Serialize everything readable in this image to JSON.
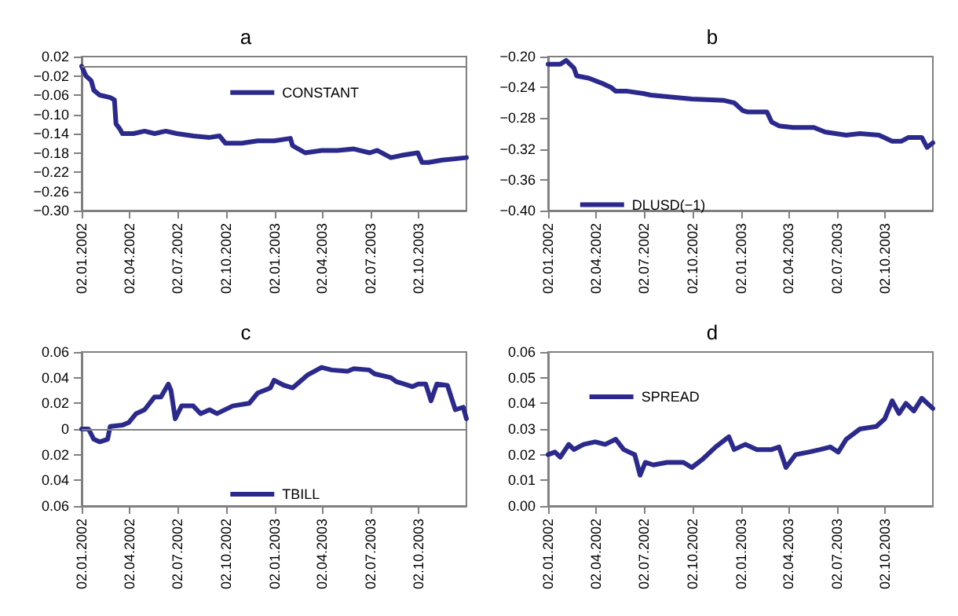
{
  "chart_data": [
    {
      "type": "line",
      "title": "a",
      "x": [
        "2002-01-02",
        "2002-01-10",
        "2002-01-20",
        "2002-01-25",
        "2002-02-05",
        "2002-02-25",
        "2002-03-05",
        "2002-03-08",
        "2002-03-15",
        "2002-03-20",
        "2002-04-10",
        "2002-05-01",
        "2002-05-20",
        "2002-06-10",
        "2002-07-01",
        "2002-08-01",
        "2002-09-01",
        "2002-09-20",
        "2002-10-01",
        "2002-11-01",
        "2002-12-01",
        "2003-01-01",
        "2003-02-01",
        "2003-02-05",
        "2003-03-01",
        "2003-04-01",
        "2003-05-01",
        "2003-06-01",
        "2003-07-01",
        "2003-07-15",
        "2003-08-10",
        "2003-09-01",
        "2003-09-30",
        "2003-10-08",
        "2003-10-20",
        "2003-11-15",
        "2003-12-31"
      ],
      "series": [
        {
          "name": "CONSTANT",
          "color": "#2b2a8c",
          "values": [
            0.0,
            -0.02,
            -0.03,
            -0.05,
            -0.06,
            -0.065,
            -0.07,
            -0.12,
            -0.13,
            -0.14,
            -0.14,
            -0.135,
            -0.14,
            -0.135,
            -0.14,
            -0.145,
            -0.148,
            -0.145,
            -0.16,
            -0.16,
            -0.155,
            -0.155,
            -0.15,
            -0.165,
            -0.18,
            -0.175,
            -0.175,
            -0.172,
            -0.18,
            -0.175,
            -0.19,
            -0.185,
            -0.18,
            -0.2,
            -0.2,
            -0.195,
            -0.19
          ]
        }
      ],
      "xlim": [
        "2002-01-02",
        "2003-12-31"
      ],
      "xticks": [
        {
          "value": "2002-01-02",
          "label": "02.01.2002"
        },
        {
          "value": "2002-04-02",
          "label": "02.04.2002"
        },
        {
          "value": "2002-07-02",
          "label": "02.07.2002"
        },
        {
          "value": "2002-10-02",
          "label": "02.10.2002"
        },
        {
          "value": "2003-01-02",
          "label": "02.01.2003"
        },
        {
          "value": "2003-04-02",
          "label": "02.04.2003"
        },
        {
          "value": "2003-07-02",
          "label": "02.07.2003"
        },
        {
          "value": "2003-10-02",
          "label": "02.10.2003"
        }
      ],
      "ylim": [
        -0.3,
        0.02
      ],
      "yticks": [
        0.02,
        {
          "value": -0.02,
          "label": "−0.02"
        },
        {
          "value": -0.06,
          "label": "−0.06"
        },
        {
          "value": -0.1,
          "label": "−0.10"
        },
        {
          "value": -0.14,
          "label": "−0.14"
        },
        {
          "value": -0.18,
          "label": "−0.18"
        },
        {
          "value": -0.22,
          "label": "−0.22"
        },
        {
          "value": -0.26,
          "label": "−0.26"
        },
        {
          "value": -0.3,
          "label": "−0.30"
        }
      ],
      "ref_lines": [
        {
          "axis": "y",
          "value": 0,
          "color": "#808080"
        }
      ],
      "legend": "top",
      "grid": false
    },
    {
      "type": "line",
      "title": "b",
      "x": [
        "2002-01-02",
        "2002-01-25",
        "2002-02-05",
        "2002-02-20",
        "2002-02-25",
        "2002-03-20",
        "2002-04-15",
        "2002-05-01",
        "2002-05-10",
        "2002-06-01",
        "2002-07-01",
        "2002-07-15",
        "2002-08-15",
        "2002-10-01",
        "2002-12-01",
        "2002-12-20",
        "2003-01-05",
        "2003-01-15",
        "2003-02-20",
        "2003-03-01",
        "2003-03-15",
        "2003-04-10",
        "2003-05-20",
        "2003-06-10",
        "2003-07-20",
        "2003-08-15",
        "2003-09-20",
        "2003-10-15",
        "2003-11-01",
        "2003-11-15",
        "2003-12-10",
        "2003-12-20",
        "2003-12-31"
      ],
      "series": [
        {
          "name": "DLUSD(−1)",
          "color": "#2b2a8c",
          "values": [
            -0.21,
            -0.21,
            -0.205,
            -0.215,
            -0.225,
            -0.228,
            -0.235,
            -0.24,
            -0.245,
            -0.245,
            -0.248,
            -0.25,
            -0.252,
            -0.255,
            -0.257,
            -0.26,
            -0.27,
            -0.272,
            -0.272,
            -0.285,
            -0.29,
            -0.292,
            -0.292,
            -0.298,
            -0.302,
            -0.3,
            -0.302,
            -0.31,
            -0.31,
            -0.305,
            -0.305,
            -0.318,
            -0.312
          ]
        }
      ],
      "xlim": [
        "2002-01-02",
        "2003-12-31"
      ],
      "xticks": [
        {
          "value": "2002-01-02",
          "label": "02.01.2002"
        },
        {
          "value": "2002-04-02",
          "label": "02.04.2002"
        },
        {
          "value": "2002-07-02",
          "label": "02.07.2002"
        },
        {
          "value": "2002-10-02",
          "label": "02.10.2002"
        },
        {
          "value": "2003-01-02",
          "label": "02.01.2003"
        },
        {
          "value": "2003-04-02",
          "label": "02.04.2003"
        },
        {
          "value": "2003-07-02",
          "label": "02.07.2003"
        },
        {
          "value": "2003-10-02",
          "label": "02.10.2003"
        }
      ],
      "ylim": [
        -0.4,
        -0.2
      ],
      "yticks": [
        {
          "value": -0.2,
          "label": "−0.20"
        },
        {
          "value": -0.24,
          "label": "−0.24"
        },
        {
          "value": -0.28,
          "label": "−0.28"
        },
        {
          "value": -0.32,
          "label": "−0.32"
        },
        {
          "value": -0.36,
          "label": "−0.36"
        },
        {
          "value": -0.4,
          "label": "−0.40"
        }
      ],
      "legend": "bottom left",
      "grid": false
    },
    {
      "type": "line",
      "title": "c",
      "x": [
        "2002-01-02",
        "2002-01-15",
        "2002-01-25",
        "2002-02-05",
        "2002-02-20",
        "2002-02-25",
        "2002-03-20",
        "2002-04-01",
        "2002-04-15",
        "2002-05-01",
        "2002-05-20",
        "2002-06-01",
        "2002-06-15",
        "2002-06-20",
        "2002-06-28",
        "2002-07-10",
        "2002-08-01",
        "2002-08-15",
        "2002-09-01",
        "2002-09-15",
        "2002-10-15",
        "2002-11-15",
        "2002-12-01",
        "2002-12-25",
        "2003-01-01",
        "2003-01-20",
        "2003-02-05",
        "2003-03-05",
        "2003-04-01",
        "2003-04-20",
        "2003-05-20",
        "2003-06-01",
        "2003-06-30",
        "2003-07-10",
        "2003-08-10",
        "2003-08-20",
        "2003-09-20",
        "2003-10-01",
        "2003-10-15",
        "2003-10-25",
        "2003-11-05",
        "2003-11-25",
        "2003-12-10",
        "2003-12-25",
        "2003-12-31"
      ],
      "series": [
        {
          "name": "TBILL",
          "color": "#2b2a8c",
          "values": [
            0.0,
            0.0,
            -0.008,
            -0.01,
            -0.008,
            0.002,
            0.003,
            0.005,
            0.012,
            0.015,
            0.025,
            0.025,
            0.035,
            0.03,
            0.008,
            0.018,
            0.018,
            0.012,
            0.015,
            0.012,
            0.018,
            0.02,
            0.028,
            0.032,
            0.038,
            0.034,
            0.032,
            0.042,
            0.048,
            0.046,
            0.045,
            0.047,
            0.046,
            0.043,
            0.04,
            0.037,
            0.033,
            0.035,
            0.035,
            0.022,
            0.035,
            0.034,
            0.015,
            0.017,
            0.008
          ]
        }
      ],
      "xlim": [
        "2002-01-02",
        "2003-12-31"
      ],
      "xticks": [
        {
          "value": "2002-01-02",
          "label": "02.01.2002"
        },
        {
          "value": "2002-04-02",
          "label": "02.04.2002"
        },
        {
          "value": "2002-07-02",
          "label": "02.07.2002"
        },
        {
          "value": "2002-10-02",
          "label": "02.10.2002"
        },
        {
          "value": "2003-01-02",
          "label": "02.01.2003"
        },
        {
          "value": "2003-04-02",
          "label": "02.04.2003"
        },
        {
          "value": "2003-07-02",
          "label": "02.07.2003"
        },
        {
          "value": "2003-10-02",
          "label": "02.10.2003"
        }
      ],
      "ylim": [
        -0.06,
        0.06
      ],
      "yticks": [
        0.06,
        0.04,
        0.02,
        0,
        {
          "value": -0.02,
          "label": "0.02"
        },
        {
          "value": -0.04,
          "label": "0.04"
        },
        {
          "value": -0.06,
          "label": "0.06"
        }
      ],
      "ref_lines": [
        {
          "axis": "y",
          "value": 0,
          "color": "#808080"
        }
      ],
      "legend": "bottom",
      "grid": false
    },
    {
      "type": "line",
      "title": "d",
      "x": [
        "2002-01-02",
        "2002-01-15",
        "2002-01-25",
        "2002-02-10",
        "2002-02-20",
        "2002-03-10",
        "2002-04-01",
        "2002-04-20",
        "2002-05-10",
        "2002-05-25",
        "2002-06-15",
        "2002-06-25",
        "2002-07-05",
        "2002-07-20",
        "2002-08-15",
        "2002-09-15",
        "2002-10-01",
        "2002-10-20",
        "2002-11-15",
        "2002-12-10",
        "2002-12-20",
        "2003-01-10",
        "2003-02-01",
        "2003-03-01",
        "2003-03-15",
        "2003-03-28",
        "2003-04-15",
        "2003-05-10",
        "2003-06-01",
        "2003-06-20",
        "2003-07-05",
        "2003-07-20",
        "2003-08-15",
        "2003-09-15",
        "2003-10-01",
        "2003-10-15",
        "2003-10-28",
        "2003-11-10",
        "2003-11-25",
        "2003-12-10",
        "2003-12-31"
      ],
      "series": [
        {
          "name": "SPREAD",
          "color": "#2b2a8c",
          "values": [
            0.02,
            0.021,
            0.019,
            0.024,
            0.022,
            0.024,
            0.025,
            0.024,
            0.026,
            0.022,
            0.02,
            0.012,
            0.017,
            0.016,
            0.017,
            0.017,
            0.015,
            0.018,
            0.023,
            0.027,
            0.022,
            0.024,
            0.022,
            0.022,
            0.023,
            0.015,
            0.02,
            0.021,
            0.022,
            0.023,
            0.021,
            0.026,
            0.03,
            0.031,
            0.034,
            0.041,
            0.036,
            0.04,
            0.037,
            0.042,
            0.038
          ]
        }
      ],
      "xlim": [
        "2002-01-02",
        "2003-12-31"
      ],
      "xticks": [
        {
          "value": "2002-01-02",
          "label": "02.01.2002"
        },
        {
          "value": "2002-04-02",
          "label": "02.04.2002"
        },
        {
          "value": "2002-07-02",
          "label": "02.07.2002"
        },
        {
          "value": "2002-10-02",
          "label": "02.10.2002"
        },
        {
          "value": "2003-01-02",
          "label": "02.01.2003"
        },
        {
          "value": "2003-04-02",
          "label": "02.04.2003"
        },
        {
          "value": "2003-07-02",
          "label": "02.07.2003"
        },
        {
          "value": "2003-10-02",
          "label": "02.10.2003"
        }
      ],
      "ylim": [
        0,
        0.06
      ],
      "yticks": [
        {
          "value": 0,
          "label": "0.00"
        },
        {
          "value": 0.01,
          "label": "0.01"
        },
        {
          "value": 0.02,
          "label": "0.02"
        },
        {
          "value": 0.03,
          "label": "0.03"
        },
        {
          "value": 0.04,
          "label": "0.04"
        },
        {
          "value": 0.05,
          "label": "0.05"
        },
        {
          "value": 0.06,
          "label": "0.06"
        }
      ],
      "legend": "top left",
      "grid": false
    }
  ]
}
